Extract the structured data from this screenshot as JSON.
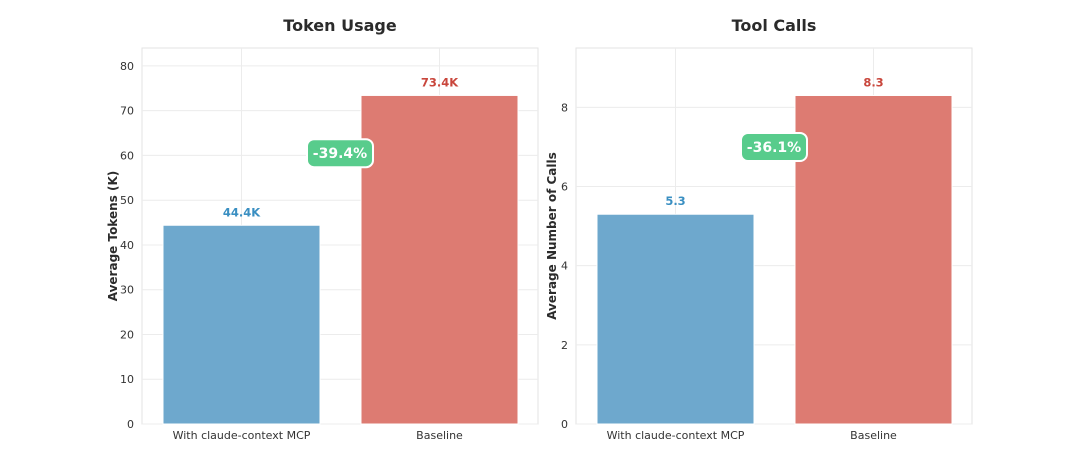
{
  "chart_data": [
    {
      "type": "bar",
      "title": "Token Usage",
      "xlabel": "",
      "ylabel": "Average Tokens (K)",
      "categories": [
        "With claude-context MCP",
        "Baseline"
      ],
      "values": [
        44.4,
        73.4
      ],
      "data_labels": [
        "44.4K",
        "73.4K"
      ],
      "bar_colors": [
        "#6ea8cd",
        "#dd7b72"
      ],
      "label_colors": [
        "#3a8fc2",
        "#c9473d"
      ],
      "ylim": [
        0,
        84
      ],
      "yticks": [
        0,
        10,
        20,
        30,
        40,
        50,
        60,
        70,
        80
      ],
      "grid": true,
      "annotation": {
        "text": "-39.4%",
        "color": "#58cc8c",
        "y": 60.5
      }
    },
    {
      "type": "bar",
      "title": "Tool Calls",
      "xlabel": "",
      "ylabel": "Average Number of Calls",
      "categories": [
        "With claude-context MCP",
        "Baseline"
      ],
      "values": [
        5.3,
        8.3
      ],
      "data_labels": [
        "5.3",
        "8.3"
      ],
      "bar_colors": [
        "#6ea8cd",
        "#dd7b72"
      ],
      "label_colors": [
        "#3a8fc2",
        "#c9473d"
      ],
      "ylim": [
        0,
        9.5
      ],
      "yticks": [
        0,
        2,
        4,
        6,
        8
      ],
      "grid": true,
      "annotation": {
        "text": "-36.1%",
        "color": "#58cc8c",
        "y": 7.0
      }
    }
  ]
}
